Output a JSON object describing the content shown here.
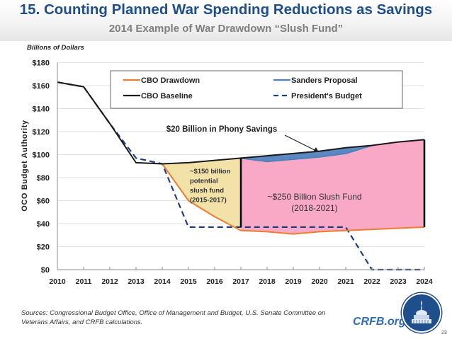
{
  "slide": {
    "title": "15. Counting Planned War Spending Reductions as Savings",
    "subtitle": "2014 Example of War Drawdown “Slush Fund”",
    "units_label": "Billions of Dollars",
    "sources": "Sources: Congressional Budget Office, Office of Management and Budget, U.S. Senate Committee on Veterans Affairs, and CRFB calculations.",
    "brand": "CRFB.org",
    "page_number": "23",
    "logo_icon": "capitol-seal-icon"
  },
  "chart_data": {
    "type": "line",
    "title": "2014 Example of War Drawdown “Slush Fund”",
    "xlabel": "",
    "ylabel": "OCO Budget Authority",
    "x": [
      2010,
      2011,
      2012,
      2013,
      2014,
      2015,
      2016,
      2017,
      2018,
      2019,
      2020,
      2021,
      2022,
      2023,
      2024
    ],
    "xlim": [
      2010,
      2024
    ],
    "ylim": [
      0,
      180
    ],
    "y_ticks": [
      0,
      20,
      40,
      60,
      80,
      100,
      120,
      140,
      160,
      180
    ],
    "y_tick_labels": [
      "$0",
      "$20",
      "$40",
      "$60",
      "$80",
      "$100",
      "$120",
      "$140",
      "$160",
      "$180"
    ],
    "x_tick_labels": [
      "2010",
      "2011",
      "2012",
      "2013",
      "2014",
      "2015",
      "2016",
      "2017",
      "2018",
      "2019",
      "2020",
      "2021",
      "2022",
      "2023",
      "2024"
    ],
    "grid": true,
    "legend_position": "top",
    "series": [
      {
        "name": "CBO Baseline",
        "color": "#1a1a1a",
        "style": "solid",
        "x": [
          2010,
          2011,
          2012,
          2013,
          2014,
          2015,
          2016,
          2017,
          2018,
          2019,
          2020,
          2021,
          2022,
          2023,
          2024
        ],
        "values": [
          163,
          159,
          127,
          93,
          92,
          93,
          95,
          97,
          99,
          101,
          103,
          106,
          108,
          111,
          113
        ]
      },
      {
        "name": "President's Budget",
        "color": "#1f3f7f",
        "style": "dashed",
        "x": [
          2010,
          2011,
          2012,
          2013,
          2014,
          2015,
          2016,
          2017,
          2018,
          2019,
          2020,
          2021,
          2022,
          2023,
          2024
        ],
        "values": [
          163,
          159,
          127,
          97,
          92,
          37,
          37,
          37,
          37,
          37,
          37,
          37,
          0,
          0,
          0
        ]
      },
      {
        "name": "CBO Drawdown",
        "color": "#ed7d31",
        "style": "solid",
        "x": [
          2014,
          2015,
          2016,
          2017,
          2018,
          2019,
          2020,
          2021,
          2022,
          2023,
          2024
        ],
        "values": [
          92,
          60,
          46,
          34,
          33,
          31,
          33,
          34,
          35,
          36,
          37
        ]
      },
      {
        "name": "Sanders Proposal",
        "color": "#4f81bd",
        "style": "solid",
        "x": [
          2017,
          2018,
          2019,
          2020,
          2021,
          2022
        ],
        "values": [
          97,
          94,
          96,
          98,
          101,
          108
        ]
      }
    ],
    "shaded_regions": [
      {
        "name": "~$150 billion potential slush fund (2015-2017)",
        "color": "#f2e2a8",
        "from_year": 2014,
        "to_year": 2017,
        "between": [
          "CBO Drawdown",
          "CBO Baseline"
        ]
      },
      {
        "name": "~$250 Billion Slush Fund (2018-2021)",
        "color": "#f9a8c6",
        "from_year": 2017,
        "to_year": 2024,
        "between": [
          "CBO Drawdown",
          "Sanders Proposal"
        ]
      },
      {
        "name": "$20 Billion in Phony Savings",
        "color": "#5b88c0",
        "from_year": 2017,
        "to_year": 2022,
        "between": [
          "Sanders Proposal",
          "CBO Baseline"
        ]
      }
    ],
    "annotations": {
      "phony_savings": "$20 Billion in Phony  Savings",
      "yellow_lines": [
        "~$150 billion",
        "potential",
        "slush fund",
        "(2015-2017)"
      ],
      "pink_lines": [
        "~$250 Billion Slush Fund",
        "(2018-2021)"
      ]
    }
  }
}
